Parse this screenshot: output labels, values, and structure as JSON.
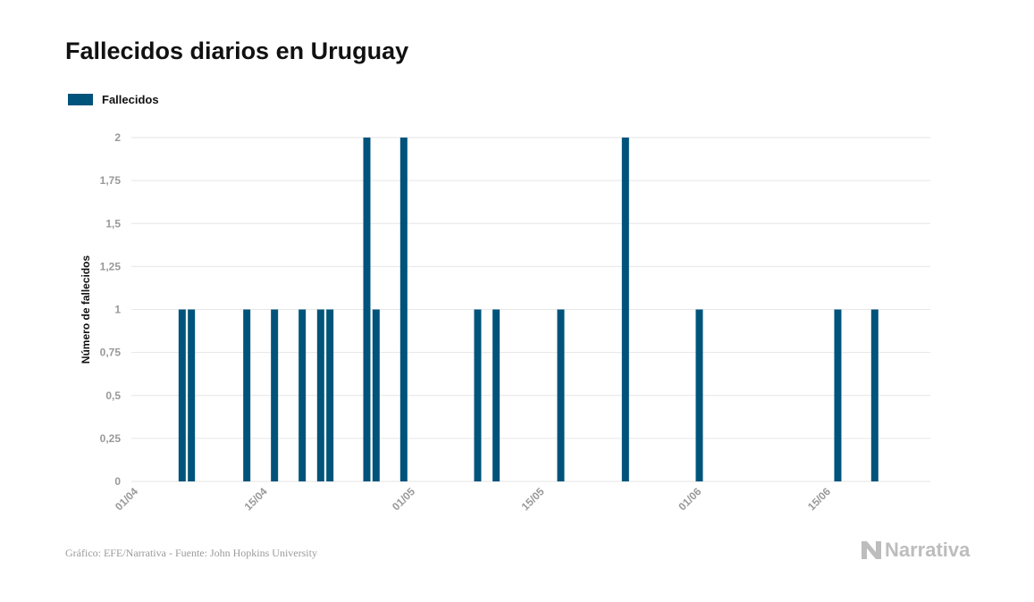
{
  "title": "Fallecidos diarios en Uruguay",
  "source": "Gráfico: EFE/Narrativa - Fuente: John Hopkins University",
  "brand": "Narrativa",
  "colors": {
    "bar": "#00537a",
    "grid": "#e6e6e6",
    "tick": "#999999",
    "axis_title": "#111111"
  },
  "chart_data": {
    "type": "bar",
    "title": "Fallecidos diarios en Uruguay",
    "xlabel": "",
    "ylabel": "Número de fallecidos",
    "ylim": [
      0,
      2
    ],
    "yticks": [
      "0",
      "0,25",
      "0,5",
      "0,75",
      "1",
      "1,25",
      "1,5",
      "1,75",
      "2"
    ],
    "xticks": [
      "01/04",
      "15/04",
      "01/05",
      "15/05",
      "01/06",
      "15/06"
    ],
    "grid": true,
    "legend_position": "top-left",
    "series": [
      {
        "name": "Fallecidos",
        "color": "#00537a",
        "points": [
          {
            "date": "06/04",
            "value": 1
          },
          {
            "date": "07/04",
            "value": 1
          },
          {
            "date": "13/04",
            "value": 1
          },
          {
            "date": "16/04",
            "value": 1
          },
          {
            "date": "19/04",
            "value": 1
          },
          {
            "date": "21/04",
            "value": 1
          },
          {
            "date": "22/04",
            "value": 1
          },
          {
            "date": "26/04",
            "value": 2
          },
          {
            "date": "27/04",
            "value": 1
          },
          {
            "date": "30/04",
            "value": 2
          },
          {
            "date": "08/05",
            "value": 1
          },
          {
            "date": "10/05",
            "value": 1
          },
          {
            "date": "17/05",
            "value": 1
          },
          {
            "date": "24/05",
            "value": 2
          },
          {
            "date": "01/06",
            "value": 1
          },
          {
            "date": "16/06",
            "value": 1
          },
          {
            "date": "20/06",
            "value": 1
          }
        ]
      }
    ]
  }
}
